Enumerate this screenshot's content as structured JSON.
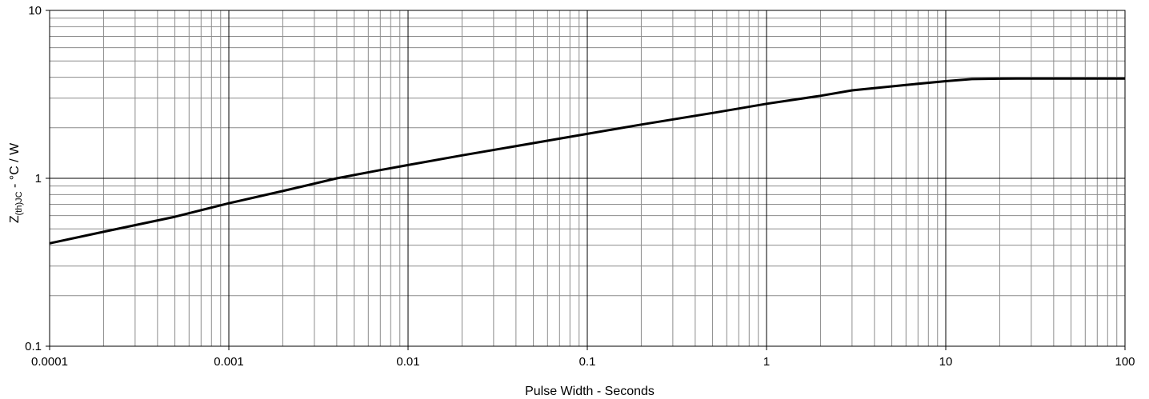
{
  "chart_data": {
    "type": "line",
    "title": "",
    "xlabel": "Pulse Width - Seconds",
    "ylabel_main": "Z",
    "ylabel_sub": "(th)JC",
    "ylabel_rest": " - °C / W",
    "x_scale": "log",
    "y_scale": "log",
    "xlim": [
      0.0001,
      100
    ],
    "ylim": [
      0.1,
      10
    ],
    "x_ticks": [
      "0.0001",
      "0.001",
      "0.01",
      "0.1",
      "1",
      "10",
      "100"
    ],
    "y_ticks": [
      "0.1",
      "1",
      "10"
    ],
    "grid": true,
    "legend": "none",
    "series": [
      {
        "x": [
          0.0001,
          0.0002,
          0.0005,
          0.001,
          0.002,
          0.004,
          0.007,
          0.01,
          0.02,
          0.05,
          0.1,
          0.2,
          0.5,
          1,
          2,
          3,
          6,
          10,
          14,
          20,
          30,
          50,
          100
        ],
        "y": [
          0.41,
          0.48,
          0.59,
          0.71,
          0.84,
          1.0,
          1.12,
          1.2,
          1.37,
          1.62,
          1.84,
          2.09,
          2.45,
          2.78,
          3.1,
          3.34,
          3.6,
          3.79,
          3.9,
          3.92,
          3.93,
          3.93,
          3.93
        ]
      }
    ],
    "colors": {
      "line": "#000000",
      "major_grid": "#000000",
      "minor_grid": "#8c8c8c"
    }
  }
}
